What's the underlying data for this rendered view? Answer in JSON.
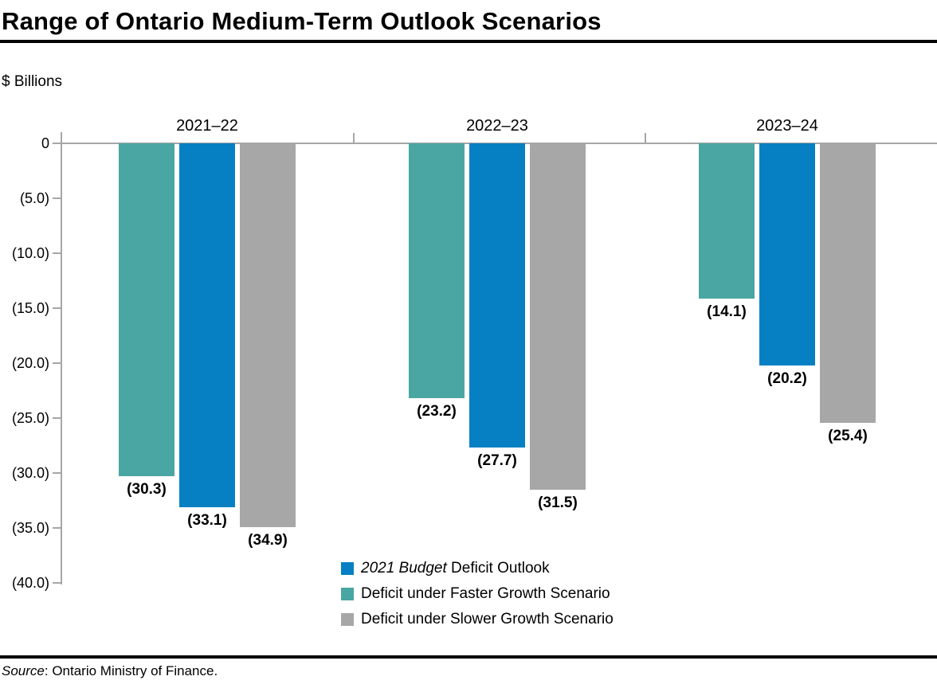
{
  "title": "Range of Ontario Medium-Term Outlook Scenarios",
  "colors": {
    "blue": "#0680c2",
    "teal": "#4aa6a2",
    "gray": "#a7a7a7",
    "axis_gray": "#a6a6a6",
    "text": "#000000"
  },
  "chart_data": {
    "type": "bar",
    "title": "Range of Ontario Medium-Term Outlook Scenarios",
    "ylabel": "$ Billions",
    "categories": [
      "2021–22",
      "2022–23",
      "2023–24"
    ],
    "series": [
      {
        "name": "Deficit under Faster Growth Scenario",
        "color_key": "teal",
        "values": [
          -30.3,
          -23.2,
          -14.1
        ],
        "labels": [
          "(30.3)",
          "(23.2)",
          "(14.1)"
        ]
      },
      {
        "name": "2021 Budget Deficit Outlook",
        "color_key": "blue",
        "values": [
          -33.1,
          -27.7,
          -20.2
        ],
        "labels": [
          "(33.1)",
          "(27.7)",
          "(20.2)"
        ]
      },
      {
        "name": "Deficit under Slower Growth Scenario",
        "color_key": "gray",
        "values": [
          -34.9,
          -31.5,
          -25.4
        ],
        "labels": [
          "(34.9)",
          "(31.5)",
          "(25.4)"
        ]
      }
    ],
    "y_ticks": [
      "0",
      "(5.0)",
      "(10.0)",
      "(15.0)",
      "(20.0)",
      "(25.0)",
      "(30.0)",
      "(35.0)",
      "(40.0)"
    ],
    "y_tick_values": [
      0,
      -5,
      -10,
      -15,
      -20,
      -25,
      -30,
      -35,
      -40
    ],
    "ylim": [
      -40,
      0
    ],
    "grid": false,
    "legend_position": "bottom-center"
  },
  "legend": {
    "items": [
      {
        "italic": "2021 Budget",
        "rest": " Deficit Outlook",
        "color_key": "blue"
      },
      {
        "italic": "",
        "rest": "Deficit under Faster Growth Scenario",
        "color_key": "teal"
      },
      {
        "italic": "",
        "rest": "Deficit under Slower Growth Scenario",
        "color_key": "gray"
      }
    ]
  },
  "source": {
    "label_italic": "Source",
    "rest": ": Ontario Ministry of Finance."
  }
}
